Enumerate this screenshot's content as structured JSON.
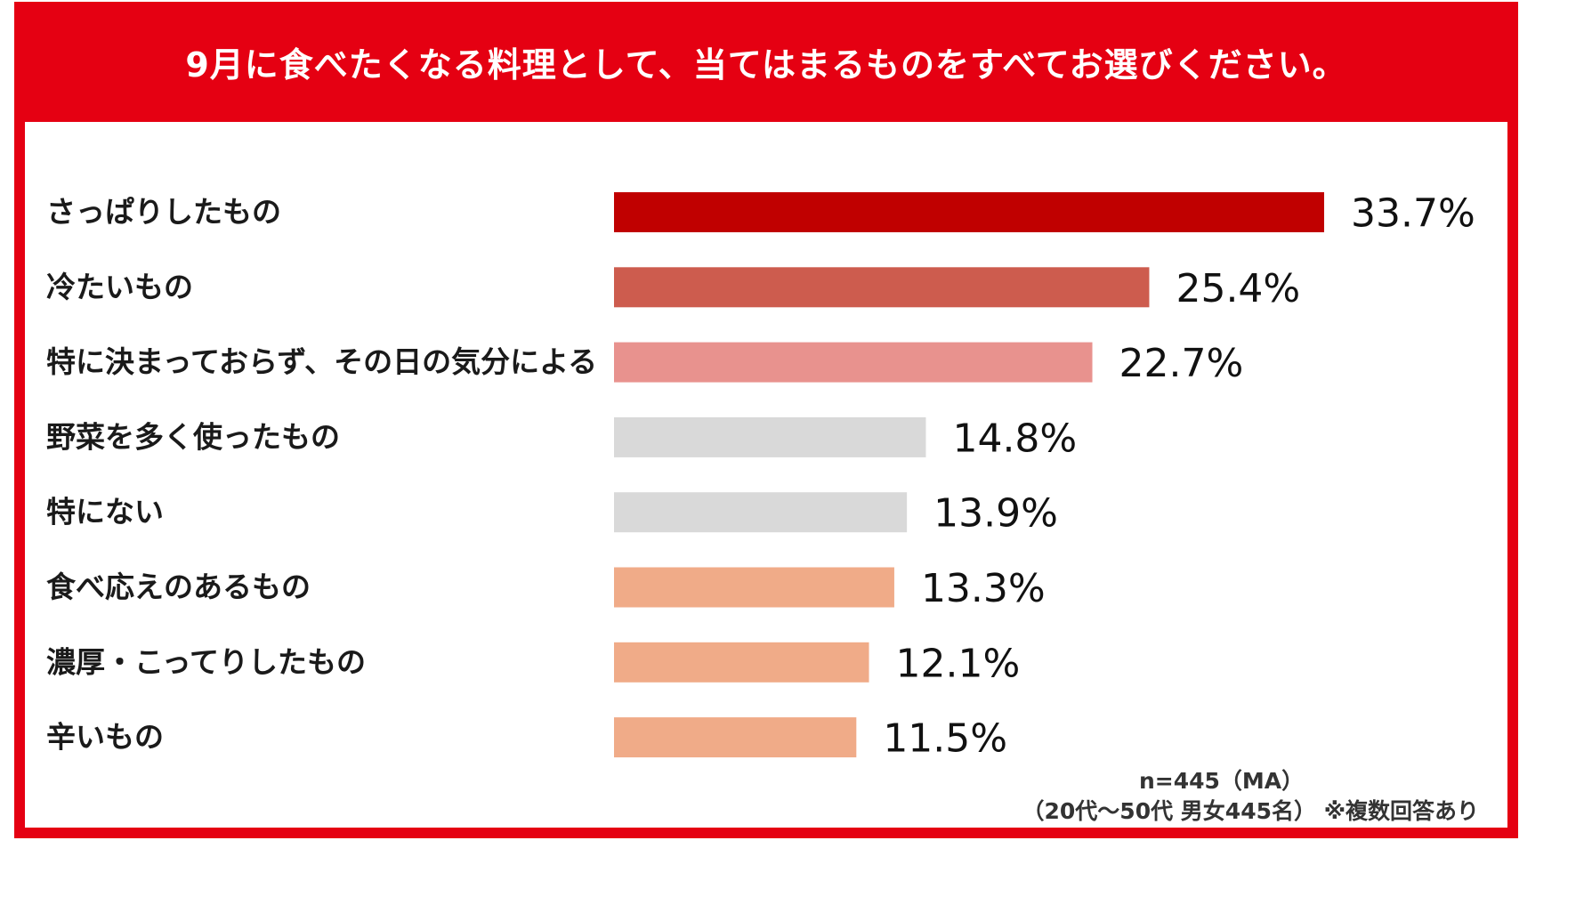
{
  "chart_data": {
    "type": "bar",
    "orientation": "horizontal",
    "title": "9月に食べたくなる料理として、当てはまるものをすべてお選びください。",
    "categories": [
      "さっぱりしたもの",
      "冷たいもの",
      "特に決まっておらず、その日の気分による",
      "野菜を多く使ったもの",
      "特にない",
      "食べ応えのあるもの",
      "濃厚・こってりしたもの",
      "辛いもの"
    ],
    "values": [
      33.7,
      25.4,
      22.7,
      14.8,
      13.9,
      13.3,
      12.1,
      11.5
    ],
    "value_labels": [
      "33.7%",
      "25.4%",
      "22.7%",
      "14.8%",
      "13.9%",
      "13.3%",
      "12.1%",
      "11.5%"
    ],
    "bar_colors": [
      "#c00000",
      "#cd5c4e",
      "#e8928e",
      "#d9d9d9",
      "#d9d9d9",
      "#f0ab88",
      "#f0ab88",
      "#f0ab88"
    ],
    "xlim": [
      0,
      33.7
    ],
    "grid": false,
    "legend": "none"
  },
  "notes": {
    "sample": "n=445（MA）",
    "demographic": "（20代～50代 男女445名） ※複数回答あり"
  },
  "colors": {
    "frame": "#e50012",
    "title_text": "#ffffff"
  }
}
